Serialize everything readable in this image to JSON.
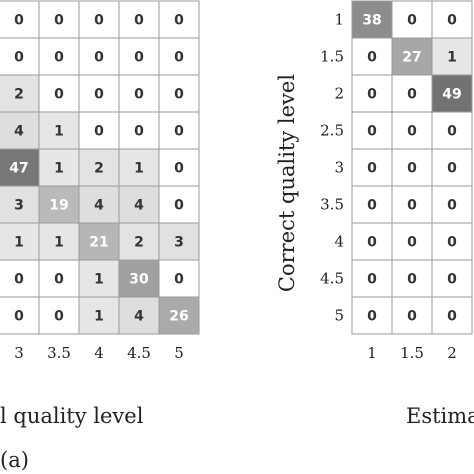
{
  "chart_data": [
    {
      "type": "heatmap",
      "panel_label": "(a)",
      "xlabel": "l quality level",
      "x_ticks": [
        "3",
        "3.5",
        "4",
        "4.5",
        "5"
      ],
      "cells": [
        [
          "0",
          "0",
          "0",
          "0",
          "0"
        ],
        [
          "0",
          "0",
          "0",
          "0",
          "0"
        ],
        [
          "2",
          "0",
          "0",
          "0",
          "0"
        ],
        [
          "4",
          "1",
          "0",
          "0",
          "0"
        ],
        [
          "47",
          "1",
          "2",
          "1",
          "0"
        ],
        [
          "3",
          "19",
          "4",
          "4",
          "0"
        ],
        [
          "1",
          "1",
          "21",
          "2",
          "3"
        ],
        [
          "0",
          "0",
          "1",
          "30",
          "0"
        ],
        [
          "0",
          "0",
          "1",
          "4",
          "26"
        ]
      ]
    },
    {
      "type": "heatmap",
      "xlabel": "Estima",
      "ylabel": "Correct quality level",
      "x_ticks": [
        "1",
        "1.5",
        "2"
      ],
      "y_ticks": [
        "1",
        "1.5",
        "2",
        "2.5",
        "3",
        "3.5",
        "4",
        "4.5",
        "5"
      ],
      "cells": [
        [
          "38",
          "0",
          "0"
        ],
        [
          "0",
          "27",
          "1"
        ],
        [
          "0",
          "0",
          "49"
        ],
        [
          "0",
          "0",
          "0"
        ],
        [
          "0",
          "0",
          "0"
        ],
        [
          "0",
          "0",
          "0"
        ],
        [
          "0",
          "0",
          "0"
        ],
        [
          "0",
          "0",
          "0"
        ],
        [
          "0",
          "0",
          "0"
        ]
      ]
    }
  ]
}
